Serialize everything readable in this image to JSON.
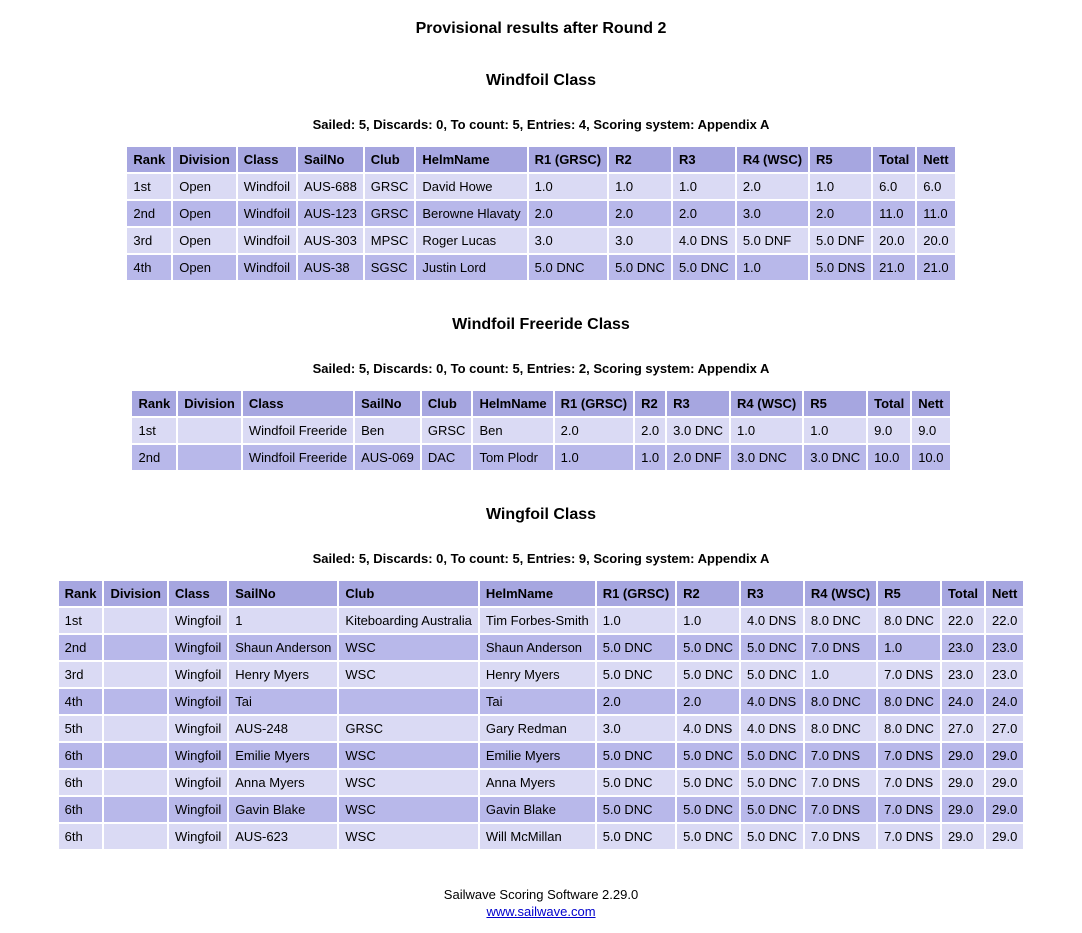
{
  "page": {
    "title": "Provisional results after Round 2",
    "footer": {
      "software": "Sailwave Scoring Software 2.29.0",
      "link": "www.sailwave.com"
    },
    "colors": {
      "header_bg": "#a6a6e0",
      "row_light": "#dadaf4",
      "row_dark": "#b8b8ea",
      "link": "#0000cc",
      "text": "#000000"
    }
  },
  "sections": [
    {
      "heading": "Windfoil Class",
      "summary": "Sailed: 5, Discards: 0, To count: 5, Entries: 4, Scoring system: Appendix A",
      "table": {
        "headers": [
          "Rank",
          "Division",
          "Class",
          "SailNo",
          "Club",
          "HelmName",
          "R1 (GRSC)",
          "R2",
          "R3",
          "R4 (WSC)",
          "R5",
          "Total",
          "Nett"
        ],
        "rows": [
          [
            "1st",
            "Open",
            "Windfoil",
            "AUS-688",
            "GRSC",
            "David Howe",
            "1.0",
            "1.0",
            "1.0",
            "2.0",
            "1.0",
            "6.0",
            "6.0"
          ],
          [
            "2nd",
            "Open",
            "Windfoil",
            "AUS-123",
            "GRSC",
            "Berowne Hlavaty",
            "2.0",
            "2.0",
            "2.0",
            "3.0",
            "2.0",
            "11.0",
            "11.0"
          ],
          [
            "3rd",
            "Open",
            "Windfoil",
            "AUS-303",
            "MPSC",
            "Roger Lucas",
            "3.0",
            "3.0",
            "4.0 DNS",
            "5.0 DNF",
            "5.0 DNF",
            "20.0",
            "20.0"
          ],
          [
            "4th",
            "Open",
            "Windfoil",
            "AUS-38",
            "SGSC",
            "Justin Lord",
            "5.0 DNC",
            "5.0 DNC",
            "5.0 DNC",
            "1.0",
            "5.0 DNS",
            "21.0",
            "21.0"
          ]
        ]
      }
    },
    {
      "heading": "Windfoil Freeride Class",
      "summary": "Sailed: 5, Discards: 0, To count: 5, Entries: 2, Scoring system: Appendix A",
      "table": {
        "headers": [
          "Rank",
          "Division",
          "Class",
          "SailNo",
          "Club",
          "HelmName",
          "R1 (GRSC)",
          "R2",
          "R3",
          "R4 (WSC)",
          "R5",
          "Total",
          "Nett"
        ],
        "rows": [
          [
            "1st",
            "",
            "Windfoil Freeride",
            "Ben",
            "GRSC",
            "Ben",
            "2.0",
            "2.0",
            "3.0 DNC",
            "1.0",
            "1.0",
            "9.0",
            "9.0"
          ],
          [
            "2nd",
            "",
            "Windfoil Freeride",
            "AUS-069",
            "DAC",
            "Tom Plodr",
            "1.0",
            "1.0",
            "2.0 DNF",
            "3.0 DNC",
            "3.0 DNC",
            "10.0",
            "10.0"
          ]
        ]
      }
    },
    {
      "heading": "Wingfoil Class",
      "summary": "Sailed: 5, Discards: 0, To count: 5, Entries: 9, Scoring system: Appendix A",
      "table": {
        "headers": [
          "Rank",
          "Division",
          "Class",
          "SailNo",
          "Club",
          "HelmName",
          "R1 (GRSC)",
          "R2",
          "R3",
          "R4 (WSC)",
          "R5",
          "Total",
          "Nett"
        ],
        "rows": [
          [
            "1st",
            "",
            "Wingfoil",
            "1",
            "Kiteboarding Australia",
            "Tim Forbes-Smith",
            "1.0",
            "1.0",
            "4.0 DNS",
            "8.0 DNC",
            "8.0 DNC",
            "22.0",
            "22.0"
          ],
          [
            "2nd",
            "",
            "Wingfoil",
            "Shaun Anderson",
            "WSC",
            "Shaun Anderson",
            "5.0 DNC",
            "5.0 DNC",
            "5.0 DNC",
            "7.0 DNS",
            "1.0",
            "23.0",
            "23.0"
          ],
          [
            "3rd",
            "",
            "Wingfoil",
            "Henry Myers",
            "WSC",
            "Henry Myers",
            "5.0 DNC",
            "5.0 DNC",
            "5.0 DNC",
            "1.0",
            "7.0 DNS",
            "23.0",
            "23.0"
          ],
          [
            "4th",
            "",
            "Wingfoil",
            "Tai",
            "",
            "Tai",
            "2.0",
            "2.0",
            "4.0 DNS",
            "8.0 DNC",
            "8.0 DNC",
            "24.0",
            "24.0"
          ],
          [
            "5th",
            "",
            "Wingfoil",
            "AUS-248",
            "GRSC",
            "Gary Redman",
            "3.0",
            "4.0 DNS",
            "4.0 DNS",
            "8.0 DNC",
            "8.0 DNC",
            "27.0",
            "27.0"
          ],
          [
            "6th",
            "",
            "Wingfoil",
            "Emilie Myers",
            "WSC",
            "Emilie Myers",
            "5.0 DNC",
            "5.0 DNC",
            "5.0 DNC",
            "7.0 DNS",
            "7.0 DNS",
            "29.0",
            "29.0"
          ],
          [
            "6th",
            "",
            "Wingfoil",
            "Anna Myers",
            "WSC",
            "Anna Myers",
            "5.0 DNC",
            "5.0 DNC",
            "5.0 DNC",
            "7.0 DNS",
            "7.0 DNS",
            "29.0",
            "29.0"
          ],
          [
            "6th",
            "",
            "Wingfoil",
            "Gavin Blake",
            "WSC",
            "Gavin Blake",
            "5.0 DNC",
            "5.0 DNC",
            "5.0 DNC",
            "7.0 DNS",
            "7.0 DNS",
            "29.0",
            "29.0"
          ],
          [
            "6th",
            "",
            "Wingfoil",
            "AUS-623",
            "WSC",
            "Will McMillan",
            "5.0 DNC",
            "5.0 DNC",
            "5.0 DNC",
            "7.0 DNS",
            "7.0 DNS",
            "29.0",
            "29.0"
          ]
        ]
      }
    }
  ]
}
